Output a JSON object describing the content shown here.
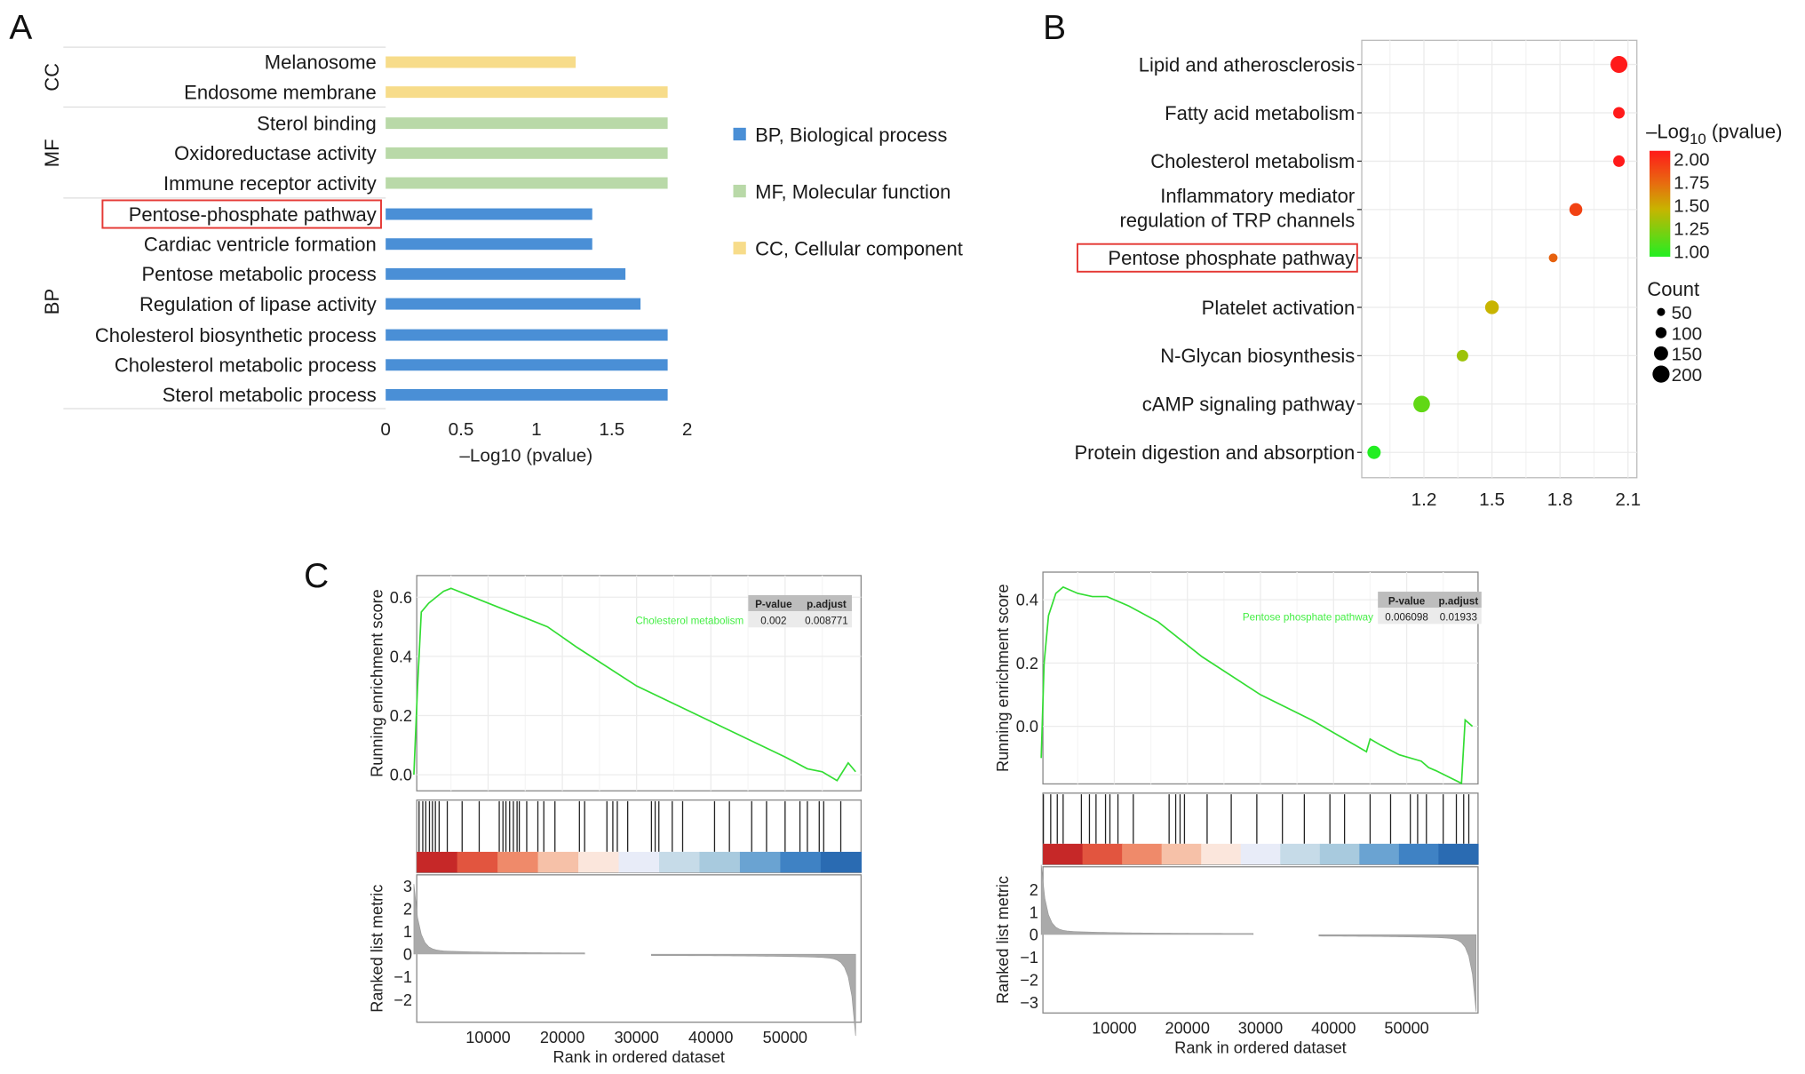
{
  "chart_data": [
    {
      "panel": "A",
      "type": "bar",
      "orientation": "horizontal",
      "xlabel": "–Log10 (pvalue)",
      "xlim": [
        0,
        2
      ],
      "xticks": [
        "0",
        "0.5",
        "1",
        "1.5",
        "2"
      ],
      "categories": [
        "Melanosome",
        "Endosome membrane",
        "Sterol binding",
        "Oxidoreductase activity",
        "Immune receptor activity",
        "Pentose-phosphate pathway",
        "Cardiac ventricle formation",
        "Pentose metabolic process",
        "Regulation of lipase activity",
        "Cholesterol biosynthetic process",
        "Cholesterol metabolic process",
        "Sterol metabolic process"
      ],
      "groups": [
        "CC",
        "CC",
        "MF",
        "MF",
        "MF",
        "BP",
        "BP",
        "BP",
        "BP",
        "BP",
        "BP",
        "BP"
      ],
      "values": [
        1.26,
        1.87,
        1.87,
        1.87,
        1.87,
        1.37,
        1.37,
        1.59,
        1.69,
        1.87,
        1.87,
        1.87
      ],
      "highlighted": "Pentose-phosphate pathway",
      "group_labels": {
        "CC": "CC",
        "MF": "MF",
        "BP": "BP"
      },
      "legend": [
        {
          "key": "BP",
          "label": "BP, Biological process",
          "color": "#4a8fd6"
        },
        {
          "key": "MF",
          "label": "MF, Molecular function",
          "color": "#b9d9a8"
        },
        {
          "key": "CC",
          "label": "CC, Cellular component",
          "color": "#f7dc8a"
        }
      ]
    },
    {
      "panel": "B",
      "type": "scatter",
      "xlim": [
        0.97,
        2.1
      ],
      "xticks": [
        "1.2",
        "1.5",
        "1.8",
        "2.1"
      ],
      "categories": [
        "Lipid and atherosclerosis",
        "Fatty acid metabolism",
        "Cholesterol metabolism",
        "Inflammatory mediator|regulation of TRP channels",
        "Pentose phosphate pathway",
        "Platelet activation",
        "N-Glycan biosynthesis",
        "cAMP signaling pathway",
        "Protein digestion and absorption"
      ],
      "x": [
        2.06,
        2.06,
        2.06,
        1.87,
        1.77,
        1.5,
        1.37,
        1.19,
        0.98
      ],
      "count": [
        220,
        70,
        70,
        100,
        25,
        120,
        70,
        210,
        110
      ],
      "neglog10p": [
        2.06,
        2.06,
        2.06,
        1.87,
        1.77,
        1.5,
        1.37,
        1.19,
        0.98
      ],
      "highlighted": "Pentose phosphate pathway",
      "color_legend": {
        "title_main": "–Log",
        "title_sub": "10",
        "title_rest": " (pvalue)",
        "ticks": [
          "2.00",
          "1.75",
          "1.50",
          "1.25",
          "1.00"
        ],
        "low": "#22ee22",
        "high": "#ff1a1a"
      },
      "size_legend": {
        "title": "Count",
        "values": [
          "50",
          "100",
          "150",
          "200"
        ]
      }
    },
    {
      "panel": "C-left",
      "type": "line",
      "pathway": "Cholesterol metabolism",
      "table": {
        "headers": [
          "P-value",
          "p.adjust"
        ],
        "values": [
          "0.002",
          "0.008771"
        ]
      },
      "ylabel": "Running enrichment score",
      "yticks": [
        "0.0",
        "0.2",
        "0.4",
        "0.6"
      ],
      "ylabel2": "Ranked list metric",
      "yticks2": [
        "3",
        "2",
        "1",
        "0",
        "−1",
        "−2"
      ],
      "xlabel": "Rank in ordered dataset",
      "xticks": [
        "10000",
        "20000",
        "30000",
        "40000",
        "50000"
      ],
      "x": [
        0,
        500,
        1000,
        2000,
        3000,
        4000,
        5000,
        7000,
        10000,
        15000,
        18000,
        22000,
        30000,
        40000,
        45000,
        50000,
        53000,
        55000,
        57000,
        58500,
        59500
      ],
      "y": [
        0.0,
        0.3,
        0.55,
        0.58,
        0.6,
        0.62,
        0.63,
        0.61,
        0.58,
        0.53,
        0.5,
        0.43,
        0.3,
        0.18,
        0.12,
        0.06,
        0.02,
        0.01,
        -0.02,
        0.04,
        0.01
      ],
      "hits": [
        700,
        1200,
        1600,
        2100,
        2500,
        2900,
        3400,
        4500,
        6500,
        8800,
        11500,
        12000,
        12400,
        12900,
        13400,
        13900,
        14200,
        15200,
        16700,
        17500,
        19000,
        22300,
        23000,
        26000,
        26800,
        27400,
        28800,
        32000,
        32500,
        33000,
        34800,
        36200,
        40500,
        42500,
        45500,
        47500,
        50000,
        52000,
        53000,
        54600,
        55200,
        57500
      ]
    },
    {
      "panel": "C-right",
      "type": "line",
      "pathway": "Pentose phosphate pathway",
      "table": {
        "headers": [
          "P-value",
          "p.adjust"
        ],
        "values": [
          "0.006098",
          "0.01933"
        ]
      },
      "ylabel": "Running enrichment score",
      "yticks": [
        "0.0",
        "0.2",
        "0.4"
      ],
      "ylabel2": "Ranked list metric",
      "yticks2": [
        "2",
        "1",
        "0",
        "−1",
        "−2",
        "−3"
      ],
      "xlabel": "Rank in ordered dataset",
      "xticks": [
        "10000",
        "20000",
        "30000",
        "40000",
        "50000"
      ],
      "x": [
        0,
        400,
        1000,
        2000,
        3000,
        5000,
        7000,
        9000,
        12000,
        16000,
        22000,
        30000,
        37000,
        44500,
        45000,
        46500,
        49000,
        52000,
        53000,
        54000,
        57500,
        58000,
        59000
      ],
      "y": [
        -0.1,
        0.2,
        0.35,
        0.42,
        0.44,
        0.42,
        0.41,
        0.41,
        0.38,
        0.33,
        0.22,
        0.1,
        0.02,
        -0.08,
        -0.04,
        -0.06,
        -0.09,
        -0.11,
        -0.13,
        -0.14,
        -0.18,
        0.02,
        0.0
      ],
      "hits": [
        300,
        1300,
        2200,
        3000,
        5500,
        6600,
        7500,
        8800,
        9400,
        10500,
        12600,
        17500,
        18400,
        19000,
        19600,
        22700,
        26000,
        29500,
        33000,
        36000,
        39500,
        41500,
        45000,
        47800,
        50500,
        51500,
        52700,
        55000,
        56800,
        57800,
        58500
      ]
    }
  ],
  "panel_labels": [
    "A",
    "B",
    "C"
  ]
}
